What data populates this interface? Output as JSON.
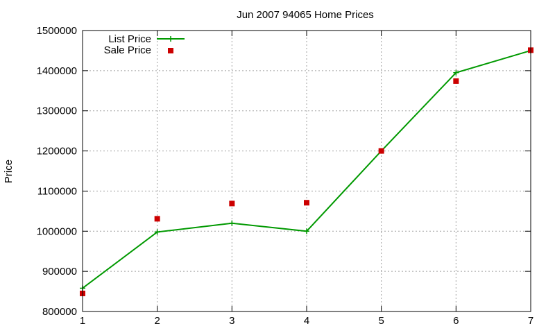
{
  "chart_data": {
    "type": "line",
    "title": "Jun 2007 94065 Home Prices",
    "xlabel": "",
    "ylabel": "Price",
    "xlim": [
      1,
      7
    ],
    "ylim": [
      800000,
      1500000
    ],
    "x_ticks": [
      1,
      2,
      3,
      4,
      5,
      6,
      7
    ],
    "y_ticks": [
      800000,
      900000,
      1000000,
      1100000,
      1200000,
      1300000,
      1400000,
      1500000
    ],
    "grid": true,
    "legend_position": "top-left",
    "series": [
      {
        "name": "List Price",
        "style": "line-with-plus-markers",
        "color": "#009900",
        "x": [
          1,
          2,
          3,
          4,
          5,
          6,
          7
        ],
        "y": [
          858000,
          998000,
          1020000,
          1000000,
          1200000,
          1395000,
          1450000
        ]
      },
      {
        "name": "Sale Price",
        "style": "square-points",
        "color": "#cc0000",
        "x": [
          1,
          2,
          3,
          4,
          5,
          6,
          7
        ],
        "y": [
          845000,
          1031000,
          1069000,
          1071000,
          1200000,
          1374000,
          1451000
        ]
      }
    ]
  }
}
